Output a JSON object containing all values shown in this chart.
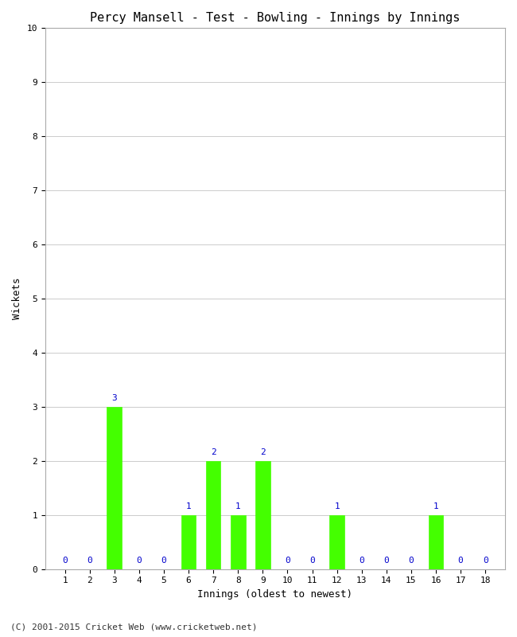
{
  "title": "Percy Mansell - Test - Bowling - Innings by Innings",
  "xlabel": "Innings (oldest to newest)",
  "ylabel": "Wickets",
  "categories": [
    "1",
    "2",
    "3",
    "4",
    "5",
    "6",
    "7",
    "8",
    "9",
    "10",
    "11",
    "12",
    "13",
    "14",
    "15",
    "16",
    "17",
    "18"
  ],
  "values": [
    0,
    0,
    3,
    0,
    0,
    1,
    2,
    1,
    2,
    0,
    0,
    1,
    0,
    0,
    0,
    1,
    0,
    0
  ],
  "bar_color": "#44ff00",
  "bar_edge_color": "#44ff00",
  "annotation_color": "#0000cc",
  "ylim": [
    0,
    10
  ],
  "yticks": [
    0,
    1,
    2,
    3,
    4,
    5,
    6,
    7,
    8,
    9,
    10
  ],
  "background_color": "#ffffff",
  "grid_color": "#cccccc",
  "title_fontsize": 11,
  "axis_label_fontsize": 9,
  "tick_fontsize": 8,
  "annotation_fontsize": 8,
  "footer": "(C) 2001-2015 Cricket Web (www.cricketweb.net)",
  "footer_fontsize": 8
}
